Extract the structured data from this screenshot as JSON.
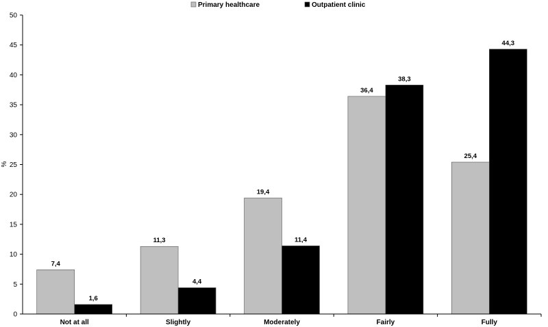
{
  "chart_data": {
    "type": "bar",
    "categories": [
      "Not at all",
      "Slightly",
      "Moderately",
      "Fairly",
      "Fully"
    ],
    "series": [
      {
        "name": "Primary healthcare",
        "color": "#c0bfbf",
        "values": [
          7.4,
          11.3,
          19.4,
          36.4,
          25.4
        ],
        "labels": [
          "7,4",
          "11,3",
          "19,4",
          "36,4",
          "25,4"
        ]
      },
      {
        "name": "Outpatient clinic",
        "color": "#000000",
        "values": [
          1.6,
          4.4,
          11.4,
          38.3,
          44.3
        ],
        "labels": [
          "1,6",
          "4,4",
          "11,4",
          "38,3",
          "44,3"
        ]
      }
    ],
    "ylabel": "%",
    "ylim": [
      0,
      50
    ],
    "yticks": [
      0,
      5,
      10,
      15,
      20,
      25,
      30,
      35,
      40,
      45,
      50
    ],
    "legend_position": "top-center",
    "grid": false
  }
}
